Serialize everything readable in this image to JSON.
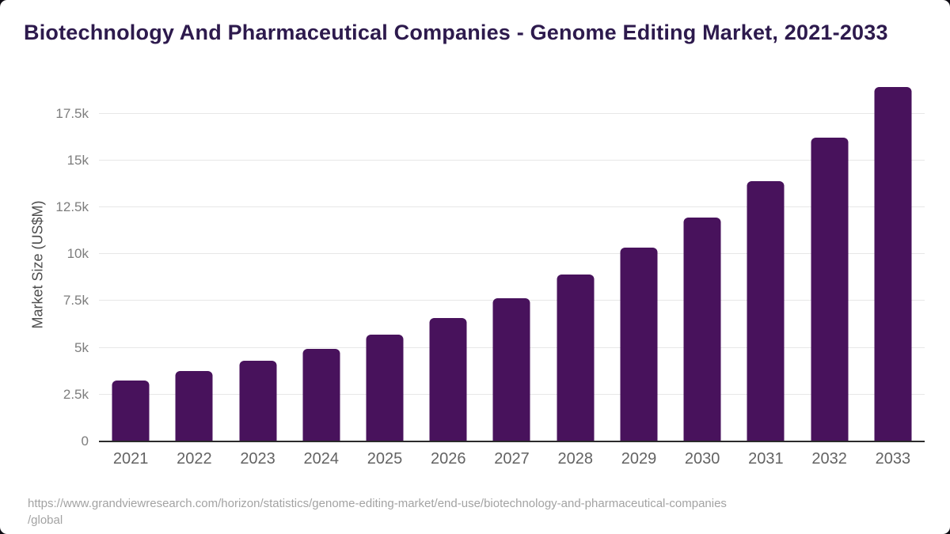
{
  "title": "Biotechnology And Pharmaceutical Companies - Genome Editing Market, 2021-2033",
  "source": {
    "line1": "https://www.grandviewresearch.com/horizon/statistics/genome-editing-market/end-use/biotechnology-and-pharmaceutical-companies",
    "line2": "/global"
  },
  "colors": {
    "bar": "#48125c",
    "title": "#2d1a4d",
    "gridline": "#e7e7e7",
    "axis_line": "#2b2b2b",
    "tick_label": "#7d7d7d",
    "x_label": "#636363",
    "source_text": "#a3a3a3",
    "card_background": "#ffffff",
    "page_background": "#0d0b12"
  },
  "chart_data": {
    "type": "bar",
    "title": "Biotechnology And Pharmaceutical Companies - Genome Editing Market, 2021-2033",
    "xlabel": "",
    "ylabel": "Market Size (US$M)",
    "categories": [
      "2021",
      "2022",
      "2023",
      "2024",
      "2025",
      "2026",
      "2027",
      "2028",
      "2029",
      "2030",
      "2031",
      "2032",
      "2033"
    ],
    "values": [
      3250,
      3750,
      4300,
      4950,
      5700,
      6600,
      7650,
      8900,
      10350,
      11950,
      13900,
      16200,
      18900
    ],
    "ylim": [
      0,
      19550
    ],
    "yticks": [
      0,
      2500,
      5000,
      7500,
      10000,
      12500,
      15000,
      17500
    ],
    "ytick_labels": [
      "0",
      "2.5k",
      "5k",
      "7.5k",
      "10k",
      "12.5k",
      "15k",
      "17.5k"
    ],
    "grid": true,
    "legend": false
  }
}
